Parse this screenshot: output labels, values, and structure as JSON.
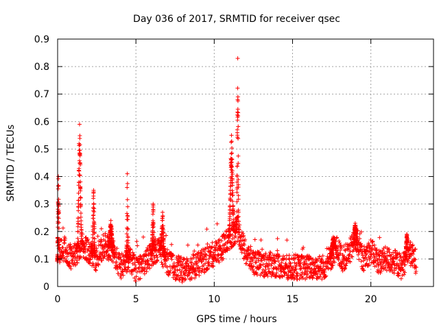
{
  "chart_data": {
    "type": "scatter",
    "title": "Day 036 of 2017, SRMTID for receiver qsec",
    "xlabel": "GPS time / hours",
    "ylabel": "SRMTID / TECUs",
    "xlim": [
      0,
      24
    ],
    "ylim": [
      0,
      0.9
    ],
    "xticks": [
      0,
      5,
      10,
      15,
      20
    ],
    "yticks": [
      0,
      0.1,
      0.2,
      0.3,
      0.4,
      0.5,
      0.6,
      0.7,
      0.8,
      0.9
    ],
    "xtick_labels": [
      "0",
      "5",
      "10",
      "15",
      "20"
    ],
    "ytick_labels": [
      "0",
      "0.1",
      "0.2",
      "0.3",
      "0.4",
      "0.5",
      "0.6",
      "0.7",
      "0.8",
      "0.9"
    ],
    "grid": true,
    "marker": "+",
    "color": "#ff0000",
    "x_span": [
      0,
      22.9
    ],
    "baseline": [
      [
        0.0,
        0.13
      ],
      [
        0.5,
        0.14
      ],
      [
        0.9,
        0.1
      ],
      [
        1.2,
        0.12
      ],
      [
        1.5,
        0.15
      ],
      [
        2.0,
        0.13
      ],
      [
        2.5,
        0.1
      ],
      [
        3.0,
        0.15
      ],
      [
        3.5,
        0.13
      ],
      [
        4.0,
        0.07
      ],
      [
        4.6,
        0.1
      ],
      [
        5.0,
        0.06
      ],
      [
        5.5,
        0.08
      ],
      [
        6.0,
        0.12
      ],
      [
        6.5,
        0.14
      ],
      [
        7.0,
        0.09
      ],
      [
        7.5,
        0.07
      ],
      [
        8.0,
        0.06
      ],
      [
        8.5,
        0.07
      ],
      [
        9.0,
        0.08
      ],
      [
        9.5,
        0.1
      ],
      [
        10.0,
        0.12
      ],
      [
        10.5,
        0.14
      ],
      [
        11.0,
        0.18
      ],
      [
        11.5,
        0.21
      ],
      [
        12.0,
        0.12
      ],
      [
        12.5,
        0.09
      ],
      [
        13.0,
        0.08
      ],
      [
        13.5,
        0.08
      ],
      [
        14.0,
        0.08
      ],
      [
        14.5,
        0.07
      ],
      [
        15.0,
        0.07
      ],
      [
        15.5,
        0.07
      ],
      [
        16.0,
        0.07
      ],
      [
        16.5,
        0.07
      ],
      [
        17.0,
        0.07
      ],
      [
        17.4,
        0.1
      ],
      [
        17.8,
        0.14
      ],
      [
        18.2,
        0.1
      ],
      [
        18.6,
        0.12
      ],
      [
        19.0,
        0.17
      ],
      [
        19.5,
        0.1
      ],
      [
        20.0,
        0.13
      ],
      [
        20.5,
        0.09
      ],
      [
        21.0,
        0.1
      ],
      [
        21.5,
        0.09
      ],
      [
        22.0,
        0.07
      ],
      [
        22.4,
        0.13
      ],
      [
        22.9,
        0.09
      ]
    ],
    "spikes": [
      {
        "x": 0.05,
        "peak": 0.4,
        "width": 0.08
      },
      {
        "x": 1.4,
        "peak": 0.59,
        "width": 0.18
      },
      {
        "x": 2.3,
        "peak": 0.35,
        "width": 0.12
      },
      {
        "x": 3.4,
        "peak": 0.24,
        "width": 0.2
      },
      {
        "x": 4.45,
        "peak": 0.41,
        "width": 0.08
      },
      {
        "x": 6.1,
        "peak": 0.3,
        "width": 0.12
      },
      {
        "x": 6.7,
        "peak": 0.27,
        "width": 0.15
      },
      {
        "x": 11.1,
        "peak": 0.55,
        "width": 0.2
      },
      {
        "x": 11.5,
        "peak": 0.83,
        "width": 0.09
      },
      {
        "x": 17.6,
        "peak": 0.18,
        "width": 0.2
      },
      {
        "x": 19.0,
        "peak": 0.23,
        "width": 0.15
      },
      {
        "x": 22.3,
        "peak": 0.19,
        "width": 0.12
      }
    ]
  }
}
